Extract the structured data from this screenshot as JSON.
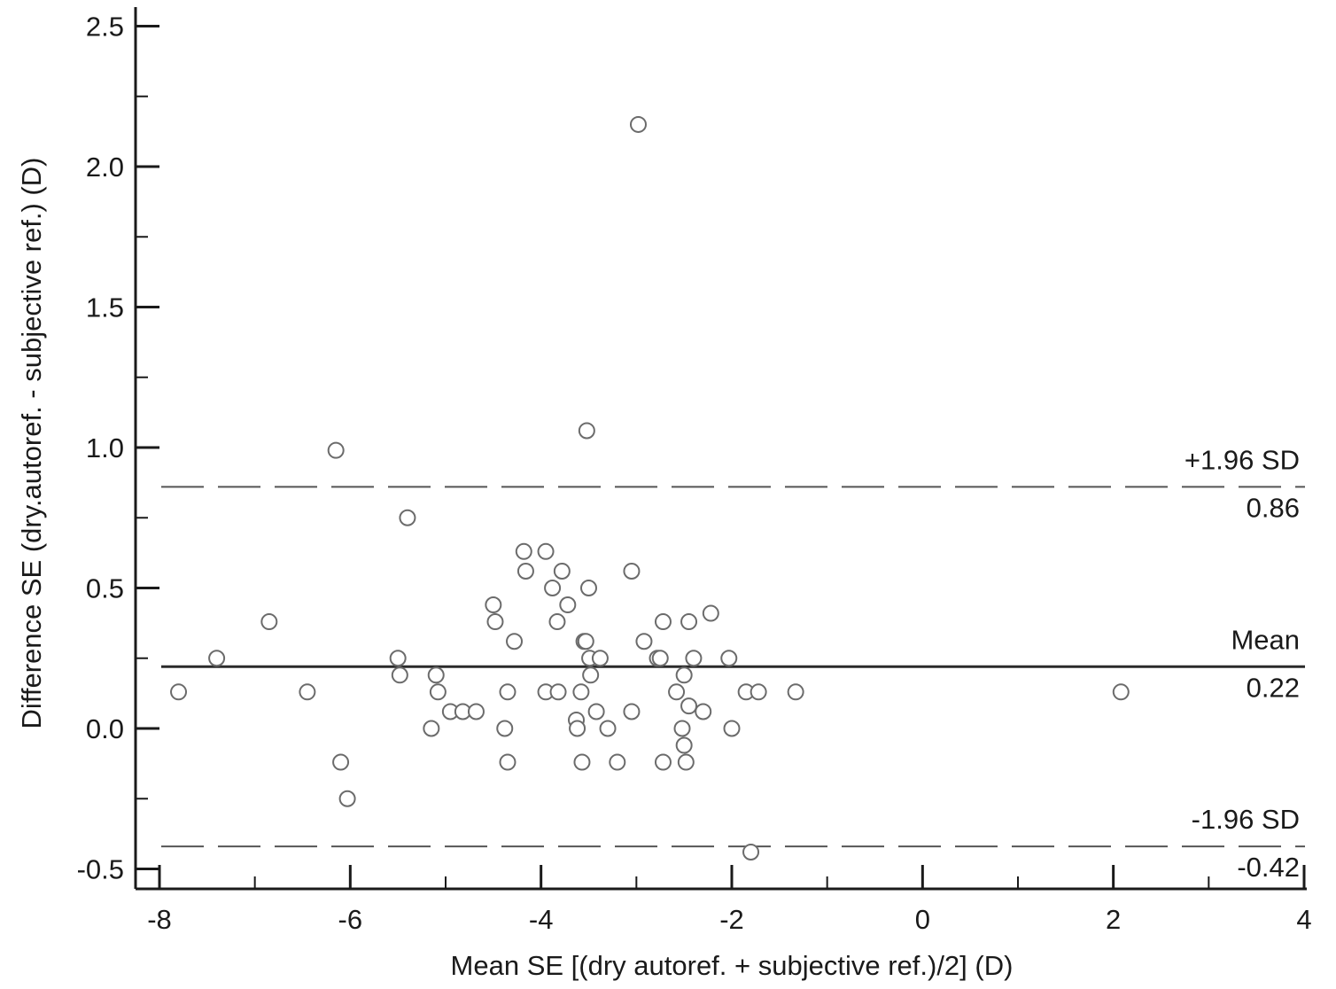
{
  "chart_data": {
    "type": "scatter",
    "title": "",
    "xlabel": "Mean SE [(dry autoref. + subjective ref.)/2] (D)",
    "ylabel": "Difference SE (dry.autoref. - subjective ref.) (D)",
    "xlim": [
      -8.05,
      4.0
    ],
    "ylim": [
      -0.52,
      2.55
    ],
    "x_ticks": [
      -8,
      -6,
      -4,
      -2,
      0,
      2,
      4
    ],
    "x_tick_labels": [
      "-8",
      "-6",
      "-4",
      "-2",
      "0",
      "2",
      "4"
    ],
    "y_ticks": [
      -0.5,
      0.0,
      0.5,
      1.0,
      1.5,
      2.0,
      2.5
    ],
    "y_tick_labels": [
      "-0.5",
      "0.0",
      "0.5",
      "1.0",
      "1.5",
      "2.0",
      "2.5"
    ],
    "grid": false,
    "legend": "none",
    "marker": "open-circle",
    "reference_lines": [
      {
        "label": "+1.96 SD",
        "value": 0.86,
        "value_label": "0.86",
        "style": "dashed"
      },
      {
        "label": "Mean",
        "value": 0.22,
        "value_label": "0.22",
        "style": "solid"
      },
      {
        "label": "-1.96 SD",
        "value": -0.42,
        "value_label": "-0.42",
        "style": "dashed"
      }
    ],
    "points": [
      [
        -7.8,
        0.13
      ],
      [
        -7.4,
        0.25
      ],
      [
        -6.85,
        0.38
      ],
      [
        -6.45,
        0.13
      ],
      [
        -6.15,
        0.99
      ],
      [
        -6.1,
        -0.12
      ],
      [
        -6.03,
        -0.25
      ],
      [
        -5.4,
        0.75
      ],
      [
        -5.5,
        0.25
      ],
      [
        -5.48,
        0.19
      ],
      [
        -5.15,
        0.0
      ],
      [
        -5.1,
        0.19
      ],
      [
        -5.08,
        0.13
      ],
      [
        -4.95,
        0.06
      ],
      [
        -4.82,
        0.06
      ],
      [
        -4.68,
        0.06
      ],
      [
        -4.5,
        0.44
      ],
      [
        -4.48,
        0.38
      ],
      [
        -4.38,
        0.0
      ],
      [
        -4.35,
        0.13
      ],
      [
        -4.35,
        -0.12
      ],
      [
        -4.28,
        0.31
      ],
      [
        -4.18,
        0.63
      ],
      [
        -4.16,
        0.56
      ],
      [
        -3.95,
        0.63
      ],
      [
        -3.95,
        0.13
      ],
      [
        -3.88,
        0.5
      ],
      [
        -3.83,
        0.38
      ],
      [
        -3.82,
        0.13
      ],
      [
        -3.78,
        0.56
      ],
      [
        -3.72,
        0.44
      ],
      [
        -3.63,
        0.03
      ],
      [
        -3.62,
        0.0
      ],
      [
        -3.58,
        0.13
      ],
      [
        -3.57,
        -0.12
      ],
      [
        -3.55,
        0.31
      ],
      [
        -3.53,
        0.31
      ],
      [
        -3.52,
        1.06
      ],
      [
        -3.5,
        0.5
      ],
      [
        -3.49,
        0.25
      ],
      [
        -3.48,
        0.19
      ],
      [
        -3.42,
        0.06
      ],
      [
        -3.38,
        0.25
      ],
      [
        -3.3,
        0.0
      ],
      [
        -3.2,
        -0.12
      ],
      [
        -3.05,
        0.06
      ],
      [
        -3.05,
        0.56
      ],
      [
        -2.98,
        2.15
      ],
      [
        -2.92,
        0.31
      ],
      [
        -2.78,
        0.25
      ],
      [
        -2.75,
        0.25
      ],
      [
        -2.72,
        0.38
      ],
      [
        -2.72,
        -0.12
      ],
      [
        -2.58,
        0.13
      ],
      [
        -2.52,
        0.0
      ],
      [
        -2.5,
        0.19
      ],
      [
        -2.5,
        -0.06
      ],
      [
        -2.48,
        -0.12
      ],
      [
        -2.45,
        0.38
      ],
      [
        -2.45,
        0.08
      ],
      [
        -2.4,
        0.25
      ],
      [
        -2.3,
        0.06
      ],
      [
        -2.22,
        0.41
      ],
      [
        -2.03,
        0.25
      ],
      [
        -2.0,
        0.0
      ],
      [
        -1.85,
        0.13
      ],
      [
        -1.8,
        -0.44
      ],
      [
        -1.72,
        0.13
      ],
      [
        -1.33,
        0.13
      ],
      [
        2.08,
        0.13
      ]
    ]
  },
  "colors": {
    "axis": "#1a1a1a",
    "marker_stroke": "#6b6b6b",
    "mean_line": "#2a2a2a",
    "sd_line": "#555555"
  }
}
